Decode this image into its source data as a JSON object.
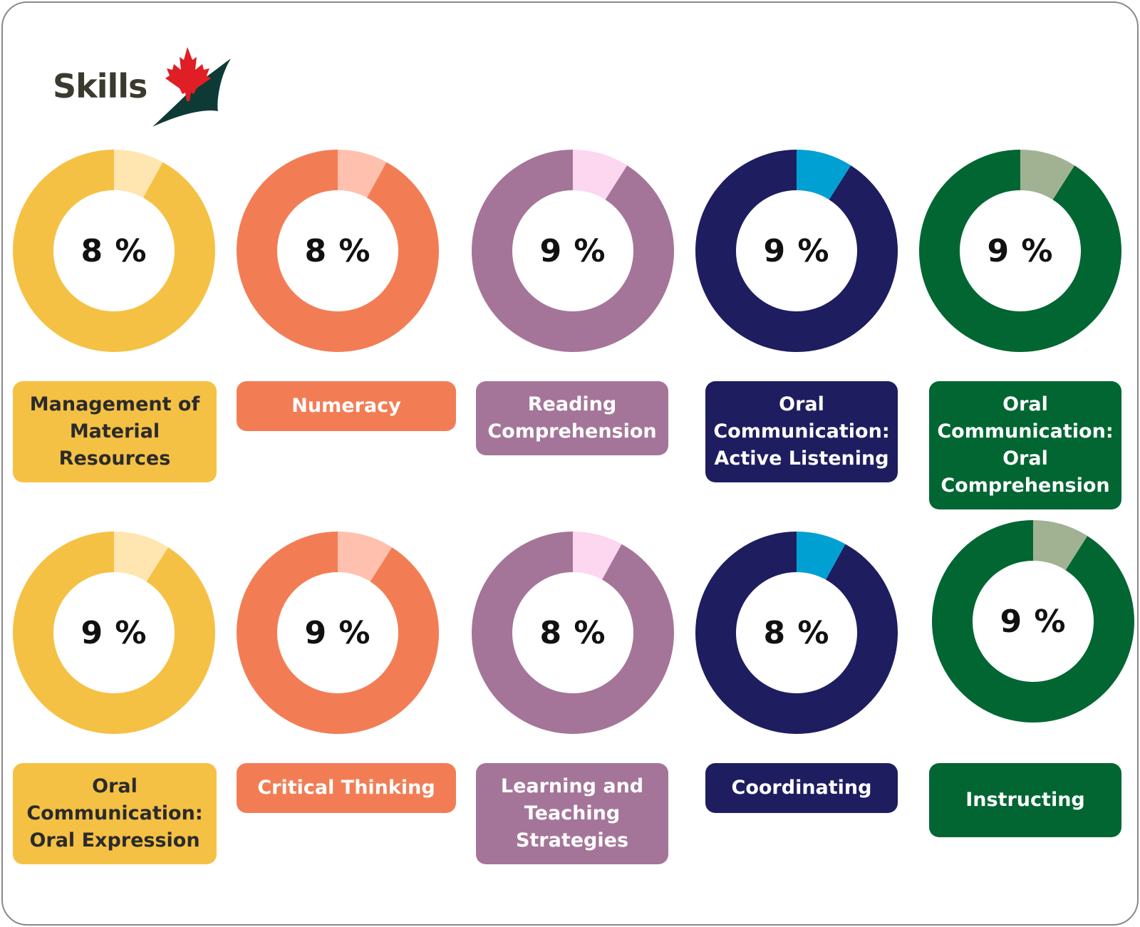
{
  "brand": {
    "name": "Skills"
  },
  "colors": {
    "yellow": {
      "main": "#F5C144",
      "light": "#FFE6B0",
      "text": "#2B2B2B"
    },
    "orange": {
      "main": "#F27D55",
      "light": "#FFC0AE",
      "text": "#FFFFFF"
    },
    "purple": {
      "main": "#A57599",
      "light": "#FDD6F0",
      "text": "#FFFFFF"
    },
    "navy": {
      "main": "#1E1D60",
      "light": "#00A0D2",
      "text": "#FFFFFF"
    },
    "green": {
      "main": "#016632",
      "light": "#A1B293",
      "text": "#FFFFFF"
    }
  },
  "chart_data": {
    "type": "pie",
    "items": [
      {
        "label": "Management of Material Resources",
        "value": 8,
        "display": "8 %",
        "color": "yellow"
      },
      {
        "label": "Numeracy",
        "value": 8,
        "display": "8 %",
        "color": "orange"
      },
      {
        "label": "Reading Comprehension",
        "value": 9,
        "display": "9 %",
        "color": "purple"
      },
      {
        "label": "Oral Communication: Active Listening",
        "value": 9,
        "display": "9 %",
        "color": "navy"
      },
      {
        "label": "Oral Communication: Oral Comprehension",
        "value": 9,
        "display": "9 %",
        "color": "green"
      },
      {
        "label": "Oral Communication: Oral Expression",
        "value": 9,
        "display": "9 %",
        "color": "yellow"
      },
      {
        "label": "Critical Thinking",
        "value": 9,
        "display": "9 %",
        "color": "orange"
      },
      {
        "label": "Learning and Teaching Strategies",
        "value": 8,
        "display": "8 %",
        "color": "purple"
      },
      {
        "label": "Coordinating",
        "value": 8,
        "display": "8 %",
        "color": "navy"
      },
      {
        "label": "Instructing",
        "value": 9,
        "display": "9 %",
        "color": "green"
      }
    ]
  }
}
